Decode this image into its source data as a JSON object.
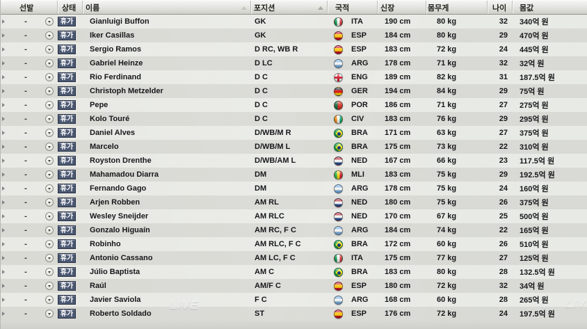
{
  "table": {
    "columns": [
      {
        "key": "selection",
        "label": "선발"
      },
      {
        "key": "status",
        "label": "상태"
      },
      {
        "key": "name",
        "label": "이름",
        "sorted": "dim"
      },
      {
        "key": "position",
        "label": "포지션",
        "sorted": "lit"
      },
      {
        "key": "nationality",
        "label": "국적"
      },
      {
        "key": "height",
        "label": "신장"
      },
      {
        "key": "weight",
        "label": "몸무게"
      },
      {
        "key": "age",
        "label": "나이"
      },
      {
        "key": "value",
        "label": "몸값"
      }
    ]
  },
  "row_controls": {
    "expand_icon": "triangle-right",
    "selection_value": "-",
    "dropdown_icon": "circle-caret-down",
    "status_badge": "휴가"
  },
  "players": [
    {
      "name": "Gianluigi Buffon",
      "position": "GK",
      "nat": "ITA",
      "height": "190 cm",
      "weight": "80 kg",
      "age": "32",
      "value": "340억 원"
    },
    {
      "name": "Iker Casillas",
      "position": "GK",
      "nat": "ESP",
      "height": "184 cm",
      "weight": "80 kg",
      "age": "29",
      "value": "470억 원"
    },
    {
      "name": "Sergio Ramos",
      "position": "D RC, WB R",
      "nat": "ESP",
      "height": "183 cm",
      "weight": "72 kg",
      "age": "24",
      "value": "445억 원"
    },
    {
      "name": "Gabriel Heinze",
      "position": "D LC",
      "nat": "ARG",
      "height": "178 cm",
      "weight": "71 kg",
      "age": "32",
      "value": "32억 원"
    },
    {
      "name": "Rio Ferdinand",
      "position": "D C",
      "nat": "ENG",
      "height": "189 cm",
      "weight": "82 kg",
      "age": "31",
      "value": "187.5억 원"
    },
    {
      "name": "Christoph Metzelder",
      "position": "D C",
      "nat": "GER",
      "height": "194 cm",
      "weight": "84 kg",
      "age": "29",
      "value": "75억 원"
    },
    {
      "name": "Pepe",
      "position": "D C",
      "nat": "POR",
      "height": "186 cm",
      "weight": "71 kg",
      "age": "27",
      "value": "275억 원"
    },
    {
      "name": "Kolo Touré",
      "position": "D C",
      "nat": "CIV",
      "height": "183 cm",
      "weight": "76 kg",
      "age": "29",
      "value": "295억 원"
    },
    {
      "name": "Daniel Alves",
      "position": "D/WB/M R",
      "nat": "BRA",
      "height": "171 cm",
      "weight": "63 kg",
      "age": "27",
      "value": "375억 원"
    },
    {
      "name": "Marcelo",
      "position": "D/WB/M L",
      "nat": "BRA",
      "height": "175 cm",
      "weight": "73 kg",
      "age": "22",
      "value": "310억 원"
    },
    {
      "name": "Royston Drenthe",
      "position": "D/WB/AM L",
      "nat": "NED",
      "height": "167 cm",
      "weight": "66 kg",
      "age": "23",
      "value": "117.5억 원"
    },
    {
      "name": "Mahamadou Diarra",
      "position": "DM",
      "nat": "MLI",
      "height": "183 cm",
      "weight": "75 kg",
      "age": "29",
      "value": "192.5억 원"
    },
    {
      "name": "Fernando Gago",
      "position": "DM",
      "nat": "ARG",
      "height": "178 cm",
      "weight": "75 kg",
      "age": "24",
      "value": "160억 원"
    },
    {
      "name": "Arjen Robben",
      "position": "AM RL",
      "nat": "NED",
      "height": "180 cm",
      "weight": "75 kg",
      "age": "26",
      "value": "375억 원"
    },
    {
      "name": "Wesley Sneijder",
      "position": "AM RLC",
      "nat": "NED",
      "height": "170 cm",
      "weight": "67 kg",
      "age": "25",
      "value": "500억 원"
    },
    {
      "name": "Gonzalo Higuaín",
      "position": "AM RC, F C",
      "nat": "ARG",
      "height": "184 cm",
      "weight": "74 kg",
      "age": "22",
      "value": "165억 원"
    },
    {
      "name": "Robinho",
      "position": "AM RLC, F C",
      "nat": "BRA",
      "height": "172 cm",
      "weight": "60 kg",
      "age": "26",
      "value": "510억 원"
    },
    {
      "name": "Antonio Cassano",
      "position": "AM LC, F C",
      "nat": "ITA",
      "height": "175 cm",
      "weight": "77 kg",
      "age": "27",
      "value": "125억 원"
    },
    {
      "name": "Júlio Baptista",
      "position": "AM C",
      "nat": "BRA",
      "height": "183 cm",
      "weight": "80 kg",
      "age": "28",
      "value": "132.5억 원"
    },
    {
      "name": "Raúl",
      "position": "AM/F C",
      "nat": "ESP",
      "height": "180 cm",
      "weight": "72 kg",
      "age": "32",
      "value": "34억 원"
    },
    {
      "name": "Javier Saviola",
      "position": "F C",
      "nat": "ARG",
      "height": "168 cm",
      "weight": "60 kg",
      "age": "28",
      "value": "265억 원"
    },
    {
      "name": "Roberto Soldado",
      "position": "ST",
      "nat": "ESP",
      "height": "176 cm",
      "weight": "72 kg",
      "age": "24",
      "value": "197.5억 원"
    }
  ],
  "flags": {
    "ITA": {
      "type": "v",
      "colors": [
        "#009246",
        "#f4f5f0",
        "#ce2b37"
      ]
    },
    "ESP": {
      "type": "h",
      "colors": [
        "#c60b1e",
        "#ffc400",
        "#c60b1e"
      ],
      "stops": [
        28,
        72
      ]
    },
    "ARG": {
      "type": "h",
      "colors": [
        "#74acdf",
        "#f5f5f5",
        "#74acdf"
      ]
    },
    "ENG": {
      "type": "cross",
      "colors": [
        "#f2f2f0",
        "#ce1124"
      ]
    },
    "GER": {
      "type": "h",
      "colors": [
        "#1a1a1a",
        "#dd0000",
        "#ffce00"
      ]
    },
    "POR": {
      "type": "v",
      "colors": [
        "#046a38",
        "#da291c"
      ],
      "stops": [
        40
      ]
    },
    "CIV": {
      "type": "v",
      "colors": [
        "#f77f00",
        "#f5f5f5",
        "#009e60"
      ]
    },
    "BRA": {
      "type": "bra",
      "colors": [
        "#009c3b",
        "#ffdf00",
        "#002776"
      ]
    },
    "NED": {
      "type": "h",
      "colors": [
        "#ae1c28",
        "#f5f5f5",
        "#21468b"
      ]
    },
    "MLI": {
      "type": "v",
      "colors": [
        "#14b53a",
        "#fcd116",
        "#ce1126"
      ]
    }
  },
  "colors": {
    "badge_bg": "#4b5872",
    "badge_text": "#ffffff",
    "row_odd": "#ebece7",
    "row_even": "#d9dad5",
    "header_text": "#23231f"
  },
  "watermarks": [
    "LIVE",
    "LIVE"
  ]
}
